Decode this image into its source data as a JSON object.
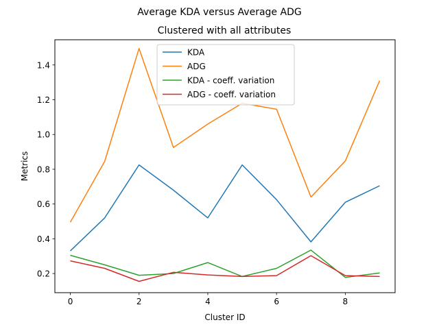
{
  "chart_data": {
    "type": "line",
    "title": "Average KDA versus Average ADG",
    "subtitle": "Clustered with all attributes",
    "xlabel": "Cluster ID",
    "ylabel": "Metrics",
    "x": [
      0,
      1,
      2,
      3,
      4,
      5,
      6,
      7,
      8,
      9
    ],
    "xlim": [
      -0.45,
      9.45
    ],
    "ylim": [
      0.09,
      1.545
    ],
    "xticks": [
      0,
      2,
      4,
      6,
      8
    ],
    "yticks": [
      0.2,
      0.4,
      0.6,
      0.8,
      1.0,
      1.2,
      1.4
    ],
    "ytick_labels": [
      "0.2",
      "0.4",
      "0.6",
      "0.8",
      "1.0",
      "1.2",
      "1.4"
    ],
    "grid": false,
    "legend_position": "upper-center",
    "series": [
      {
        "name": "KDA",
        "color": "#1f77b4",
        "values": [
          0.33,
          0.52,
          0.825,
          0.68,
          0.52,
          0.825,
          0.625,
          0.382,
          0.61,
          0.705
        ]
      },
      {
        "name": "ADG",
        "color": "#ff7f0e",
        "values": [
          0.495,
          0.845,
          1.495,
          0.925,
          1.06,
          1.18,
          1.145,
          0.64,
          0.848,
          1.31
        ]
      },
      {
        "name": "KDA - coeff. variation",
        "color": "#2ca02c",
        "values": [
          0.305,
          0.25,
          0.19,
          0.2,
          0.263,
          0.183,
          0.23,
          0.335,
          0.178,
          0.203
        ]
      },
      {
        "name": "ADG - coeff. variation",
        "color": "#d62728",
        "values": [
          0.273,
          0.23,
          0.155,
          0.207,
          0.192,
          0.183,
          0.188,
          0.303,
          0.188,
          0.183
        ]
      }
    ]
  }
}
